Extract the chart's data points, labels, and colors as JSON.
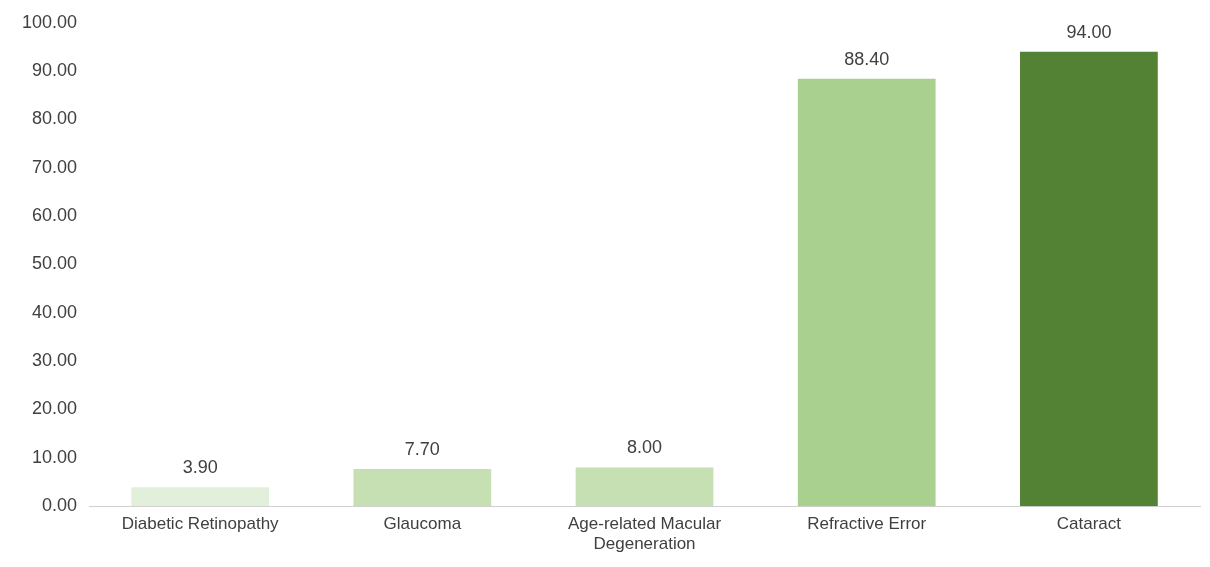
{
  "chart_data": {
    "type": "bar",
    "categories": [
      "Diabetic Retinopathy",
      "Glaucoma",
      "Age-related Macular Degeneration",
      "Refractive Error",
      "Cataract"
    ],
    "values": [
      3.9,
      7.7,
      8.0,
      88.4,
      94.0
    ],
    "colors": [
      "#e2efda",
      "#c6e0b4",
      "#c6e0b4",
      "#a9d08e",
      "#548235"
    ],
    "value_labels": [
      "3.90",
      "7.70",
      "8.00",
      "88.40",
      "94.00"
    ],
    "ylim": [
      0,
      100
    ],
    "yticks": [
      {
        "value": 0,
        "label": "0.00"
      },
      {
        "value": 10,
        "label": "10.00"
      },
      {
        "value": 20,
        "label": "20.00"
      },
      {
        "value": 30,
        "label": "30.00"
      },
      {
        "value": 40,
        "label": "40.00"
      },
      {
        "value": 50,
        "label": "50.00"
      },
      {
        "value": 60,
        "label": "60.00"
      },
      {
        "value": 70,
        "label": "70.00"
      },
      {
        "value": 80,
        "label": "80.00"
      },
      {
        "value": 90,
        "label": "90.00"
      },
      {
        "value": 100,
        "label": "100.00"
      }
    ],
    "grid": false,
    "legend": false
  }
}
